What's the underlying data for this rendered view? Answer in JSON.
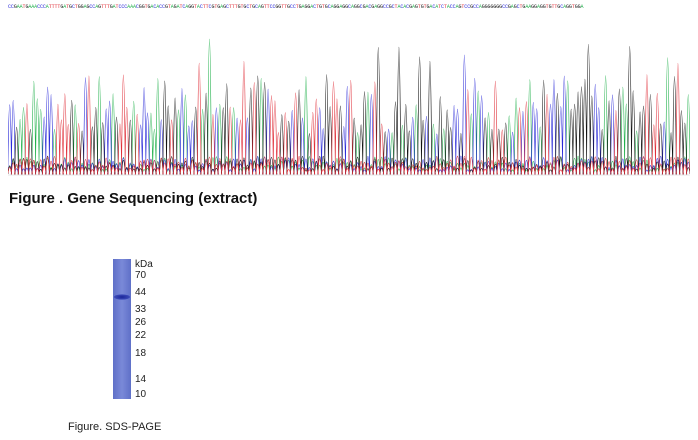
{
  "sequencing": {
    "read": "CCGAATGAAACCCATTTTGATGCTGGAGCCAGTTTGATCCCAAACGGTGACACCGTAGATCAGGTACTTCGTGAGCTTTGTGCTGCAGTTCCGGTTGCCTGAGGACTGTGCAGGAGGCAGGCGACGAGGCCGCTACACGAGTGTGACATCTACCAGTCCGCCAGGGGGGGCCGAGCTGAAGGAGGTGTTGCAGGTGGA",
    "caption": "Figure . Gene Sequencing (extract)",
    "base_colors": {
      "A": "#22b14c",
      "C": "#2a2ad8",
      "G": "#111111",
      "T": "#e0303a"
    }
  },
  "gel": {
    "unit_label": "kDa",
    "markers": [
      "70",
      "44",
      "33",
      "26",
      "22",
      "18",
      "14",
      "10"
    ],
    "lane_color": "#6b7bd1",
    "band_color": "#2633a8",
    "caption": "Figure. SDS-PAGE"
  }
}
